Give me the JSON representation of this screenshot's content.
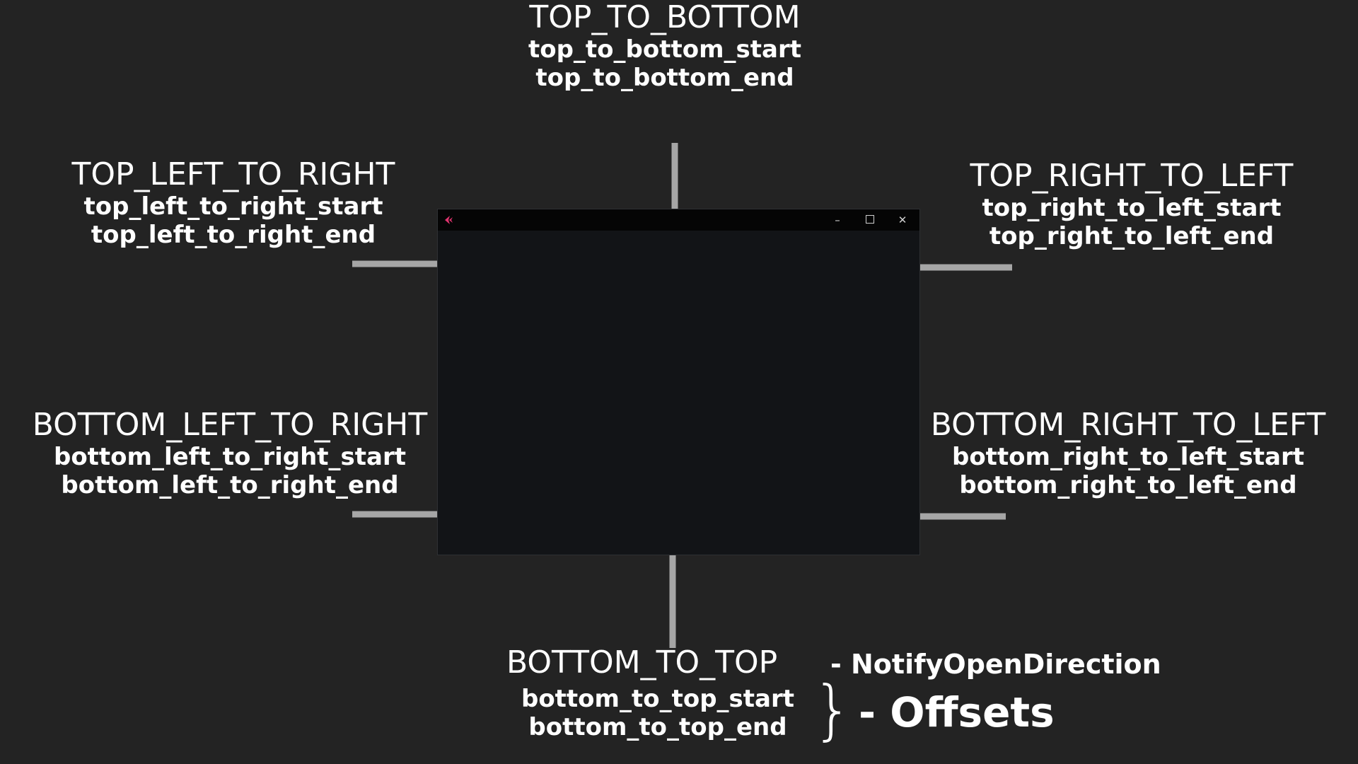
{
  "directions": {
    "top_to_bottom": {
      "title": "TOP_TO_BOTTOM",
      "start": "top_to_bottom_start",
      "end": "top_to_bottom_end"
    },
    "top_left_to_right": {
      "title": "TOP_LEFT_TO_RIGHT",
      "start": "top_left_to_right_start",
      "end": "top_left_to_right_end"
    },
    "top_right_to_left": {
      "title": "TOP_RIGHT_TO_LEFT",
      "start": "top_right_to_left_start",
      "end": "top_right_to_left_end"
    },
    "bottom_left_to_right": {
      "title": "BOTTOM_LEFT_TO_RIGHT",
      "start": "bottom_left_to_right_start",
      "end": "bottom_left_to_right_end"
    },
    "bottom_right_to_left": {
      "title": "BOTTOM_RIGHT_TO_LEFT",
      "start": "bottom_right_to_left_start",
      "end": "bottom_right_to_left_end"
    },
    "bottom_to_top": {
      "title": "BOTTOM_TO_TOP",
      "start": "bottom_to_top_start",
      "end": "bottom_to_top_end"
    }
  },
  "legend": {
    "enum_label": "- NotifyOpenDirection",
    "brace": "}",
    "offsets_label": "- Offsets"
  },
  "window": {
    "minimize_glyph": "–",
    "close_glyph": "✕"
  },
  "colors": {
    "background": "#232323",
    "text": "#ffffff",
    "arrow": "#a6a6a6",
    "window_body": "#121417",
    "titlebar": "#050505",
    "app_icon": "#e0336e"
  }
}
